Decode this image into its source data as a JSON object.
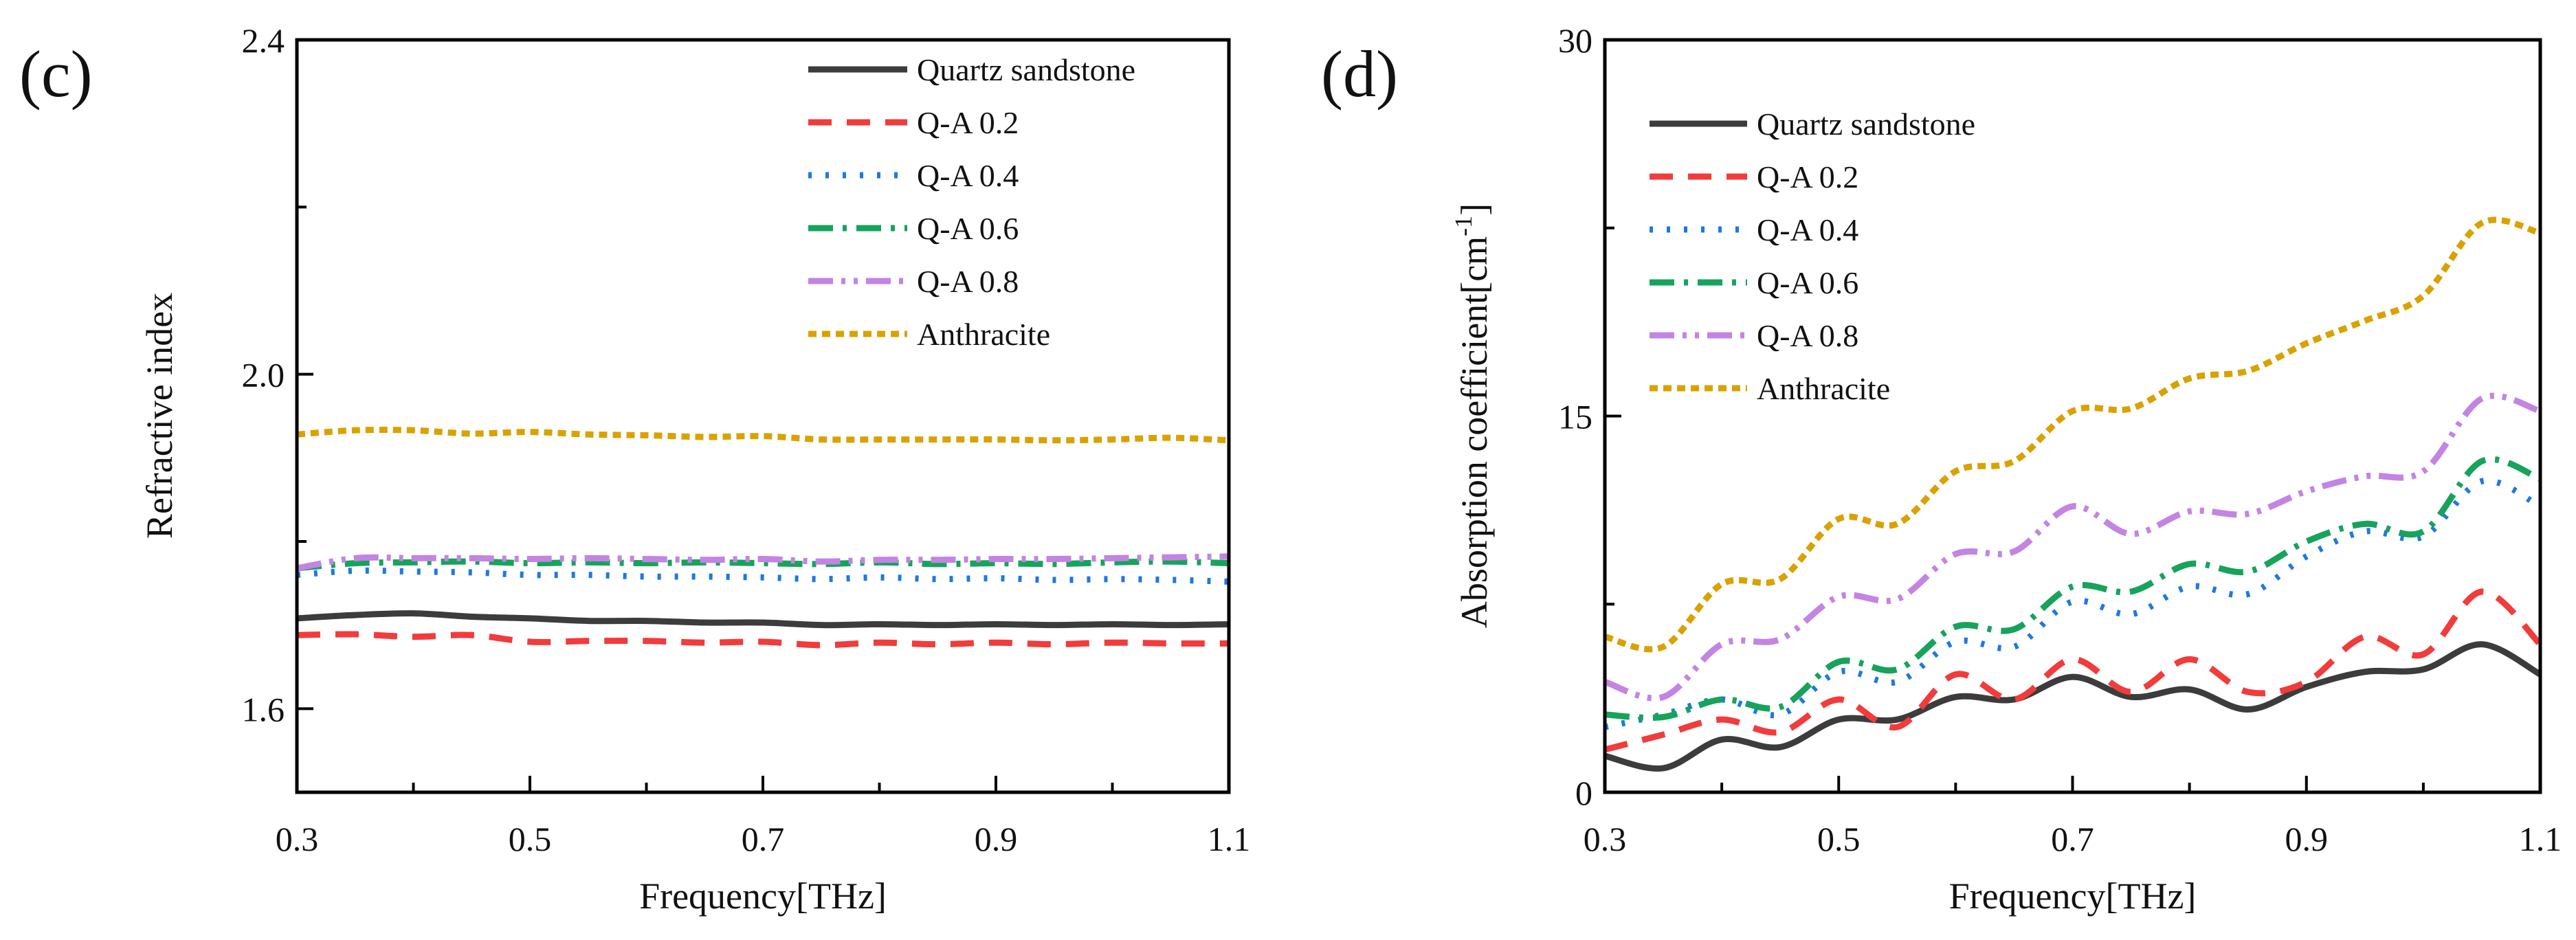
{
  "chart_data": [
    {
      "type": "line",
      "panel_label": "(c)",
      "xlabel": "Frequency[THz]",
      "ylabel": "Refractive index",
      "xlim": [
        0.3,
        1.1
      ],
      "ylim": [
        1.5,
        2.4
      ],
      "xticks": [
        0.3,
        0.5,
        0.7,
        0.9,
        1.1
      ],
      "xtick_labels": [
        "0.3",
        "0.5",
        "0.7",
        "0.9",
        "1.1"
      ],
      "xminor": [
        0.4,
        0.6,
        0.8,
        1.0
      ],
      "yticks": [
        1.6,
        2.0,
        2.4
      ],
      "ytick_labels": [
        "1.6",
        "2.0",
        "2.4"
      ],
      "yminor": [
        1.8,
        2.2
      ],
      "legend_position": "top-right",
      "x": [
        0.3,
        0.35,
        0.4,
        0.45,
        0.5,
        0.55,
        0.6,
        0.65,
        0.7,
        0.75,
        0.8,
        0.85,
        0.9,
        0.95,
        1.0,
        1.05,
        1.1
      ],
      "series": [
        {
          "name": "Quartz sandstone",
          "color": "#3c3c3c",
          "dash": "solid",
          "values": [
            1.708,
            1.712,
            1.714,
            1.71,
            1.708,
            1.705,
            1.705,
            1.703,
            1.703,
            1.7,
            1.701,
            1.7,
            1.701,
            1.7,
            1.701,
            1.7,
            1.701
          ]
        },
        {
          "name": "Q-A 0.2",
          "color": "#f23b3b",
          "dash": "dash",
          "values": [
            1.688,
            1.689,
            1.686,
            1.688,
            1.68,
            1.681,
            1.681,
            1.679,
            1.68,
            1.676,
            1.679,
            1.677,
            1.679,
            1.677,
            1.679,
            1.678,
            1.678
          ]
        },
        {
          "name": "Q-A 0.4",
          "color": "#1f78e0",
          "dash": "dot",
          "values": [
            1.76,
            1.765,
            1.764,
            1.763,
            1.76,
            1.76,
            1.758,
            1.758,
            1.757,
            1.755,
            1.757,
            1.755,
            1.756,
            1.754,
            1.755,
            1.754,
            1.752
          ]
        },
        {
          "name": "Q-A 0.6",
          "color": "#17a35c",
          "dash": "dashdot",
          "values": [
            1.768,
            1.774,
            1.775,
            1.776,
            1.774,
            1.775,
            1.774,
            1.775,
            1.774,
            1.773,
            1.775,
            1.773,
            1.774,
            1.773,
            1.775,
            1.776,
            1.774
          ]
        },
        {
          "name": "Q-A 0.8",
          "color": "#c384e3",
          "dash": "dashdotdot",
          "values": [
            1.768,
            1.78,
            1.78,
            1.78,
            1.779,
            1.78,
            1.779,
            1.778,
            1.779,
            1.776,
            1.778,
            1.778,
            1.779,
            1.779,
            1.78,
            1.781,
            1.782
          ]
        },
        {
          "name": "Anthracite",
          "color": "#d9a200",
          "dash": "shortdash",
          "values": [
            1.928,
            1.933,
            1.933,
            1.929,
            1.931,
            1.928,
            1.927,
            1.925,
            1.926,
            1.922,
            1.922,
            1.922,
            1.922,
            1.921,
            1.922,
            1.924,
            1.921
          ]
        }
      ]
    },
    {
      "type": "line",
      "panel_label": "(d)",
      "xlabel": "Frequency[THz]",
      "ylabel": "Absorption coefficient[cm",
      "ylabel_sup": "-1",
      "ylabel_end": "]",
      "xlim": [
        0.3,
        1.1
      ],
      "ylim": [
        0,
        30
      ],
      "xticks": [
        0.3,
        0.5,
        0.7,
        0.9,
        1.1
      ],
      "xtick_labels": [
        "0.3",
        "0.5",
        "0.7",
        "0.9",
        "1.1"
      ],
      "xminor": [
        0.4,
        0.6,
        0.8,
        1.0
      ],
      "yticks": [
        0,
        15,
        30
      ],
      "ytick_labels": [
        "0",
        "15",
        "30"
      ],
      "yminor": [
        7.5,
        22.5
      ],
      "legend_position": "top-left",
      "x": [
        0.3,
        0.35,
        0.4,
        0.45,
        0.5,
        0.55,
        0.6,
        0.65,
        0.7,
        0.75,
        0.8,
        0.85,
        0.9,
        0.95,
        1.0,
        1.05,
        1.1
      ],
      "series": [
        {
          "name": "Quartz sandstone",
          "color": "#3c3c3c",
          "dash": "solid",
          "values": [
            1.45,
            0.96,
            2.1,
            1.8,
            2.9,
            2.9,
            3.8,
            3.7,
            4.6,
            3.8,
            4.1,
            3.3,
            4.2,
            4.8,
            4.9,
            5.9,
            4.7
          ]
        },
        {
          "name": "Q-A 0.2",
          "color": "#f23b3b",
          "dash": "dash",
          "values": [
            1.7,
            2.3,
            2.9,
            2.4,
            3.7,
            2.6,
            4.7,
            3.7,
            5.3,
            4.0,
            5.3,
            4.0,
            4.4,
            6.2,
            5.5,
            8.0,
            5.9
          ]
        },
        {
          "name": "Q-A 0.4",
          "color": "#1f78e0",
          "dash": "dot",
          "values": [
            2.6,
            3.1,
            3.7,
            3.1,
            4.8,
            4.4,
            6.0,
            5.8,
            7.6,
            7.1,
            8.2,
            7.9,
            9.4,
            10.4,
            10.2,
            12.4,
            11.4
          ]
        },
        {
          "name": "Q-A 0.6",
          "color": "#17a35c",
          "dash": "dashdot",
          "values": [
            3.1,
            3.0,
            3.7,
            3.4,
            5.2,
            4.9,
            6.6,
            6.5,
            8.2,
            8.0,
            9.1,
            8.8,
            10.0,
            10.7,
            10.4,
            13.2,
            12.5
          ]
        },
        {
          "name": "Q-A 0.8",
          "color": "#c384e3",
          "dash": "dashdotdot",
          "values": [
            4.4,
            3.8,
            5.9,
            6.1,
            7.8,
            7.7,
            9.5,
            9.6,
            11.4,
            10.3,
            11.2,
            11.1,
            12.0,
            12.6,
            12.8,
            15.7,
            15.2
          ]
        },
        {
          "name": "Anthracite",
          "color": "#d9a200",
          "dash": "shortdash",
          "values": [
            6.2,
            5.8,
            8.3,
            8.5,
            10.9,
            10.7,
            12.8,
            13.2,
            15.2,
            15.3,
            16.5,
            16.8,
            17.9,
            18.8,
            19.8,
            22.7,
            22.3
          ]
        }
      ]
    }
  ]
}
